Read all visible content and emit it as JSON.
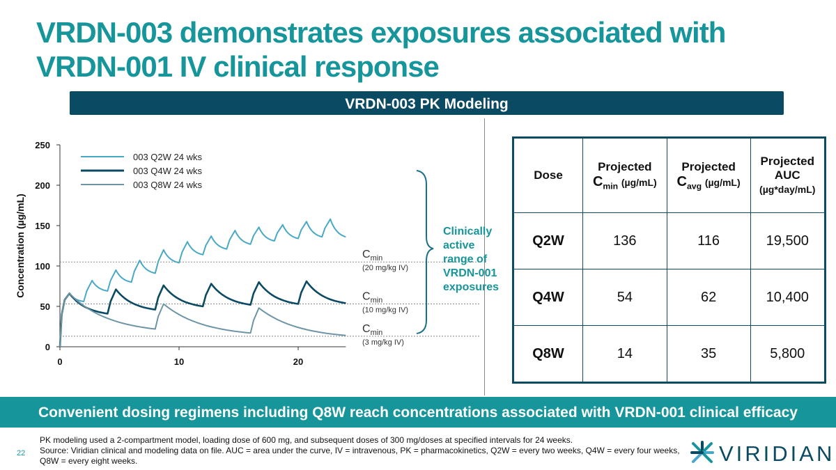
{
  "title": "VRDN-003 demonstrates exposures associated with VRDN-001 IV clinical response",
  "section_header": "VRDN-003 PK Modeling",
  "chart_data": {
    "type": "line",
    "ylabel": "Concentration (µg/mL)",
    "xlabel": "",
    "xlim": [
      0,
      24
    ],
    "ylim": [
      0,
      250
    ],
    "xticks": [
      0,
      10,
      20
    ],
    "yticks": [
      0,
      50,
      100,
      150,
      200,
      250
    ],
    "legend_position": "top-left",
    "series": [
      {
        "name": "003 Q2W 24 wks",
        "color": "#4aa8c7",
        "dose_interval_weeks": 2,
        "peaks": [
          66,
          82,
          95,
          107,
          120,
          130,
          137,
          144,
          148,
          151,
          155,
          158
        ],
        "troughs": [
          56,
          69,
          80,
          91,
          104,
          114,
          121,
          127,
          131,
          134,
          136,
          136
        ]
      },
      {
        "name": "003 Q4W 24 wks",
        "color": "#0b4a63",
        "dose_interval_weeks": 4,
        "peaks": [
          66,
          71,
          76,
          78,
          80,
          81
        ],
        "troughs": [
          41,
          46,
          50,
          52,
          53,
          54
        ]
      },
      {
        "name": "003 Q8W 24 wks",
        "color": "#6d95a6",
        "dose_interval_weeks": 8,
        "peaks": [
          66,
          53,
          48
        ],
        "troughs": [
          22,
          17,
          14
        ]
      }
    ],
    "reference_lines": [
      {
        "value": 105,
        "label_main": "C",
        "label_sub": "min",
        "label_note": "(20 mg/kg IV)"
      },
      {
        "value": 53,
        "label_main": "C",
        "label_sub": "min",
        "label_note": "(10 mg/kg IV)"
      },
      {
        "value": 13,
        "label_main": "C",
        "label_sub": "min",
        "label_note": "(3 mg/kg IV)"
      }
    ],
    "annotation": [
      "Clinically",
      "active",
      "range of",
      "VRDN-001",
      "exposures"
    ]
  },
  "table": {
    "headers": {
      "dose": "Dose",
      "cmin": {
        "line1": "Projected",
        "main": "C",
        "sub": "min",
        "unit": "(µg/mL)"
      },
      "cavg": {
        "line1": "Projected",
        "main": "C",
        "sub": "avg",
        "unit": "(µg/mL)"
      },
      "auc": {
        "line1": "Projected",
        "line2": "AUC",
        "unit": "(µg*day/mL)"
      }
    },
    "rows": [
      {
        "dose": "Q2W",
        "cmin": "136",
        "cavg": "116",
        "auc": "19,500"
      },
      {
        "dose": "Q4W",
        "cmin": "54",
        "cavg": "62",
        "auc": "10,400"
      },
      {
        "dose": "Q8W",
        "cmin": "14",
        "cavg": "35",
        "auc": "5,800"
      }
    ]
  },
  "conclusion": "Convenient dosing regimens including Q8W reach concentrations associated with VRDN-001 clinical efficacy",
  "page_number": "22",
  "footnotes": [
    "PK modeling used a 2-compartment model, loading dose of 600 mg, and subsequent doses of 300 mg/doses at specified intervals for 24 weeks.",
    "Source: Viridian clinical and modeling data on file. AUC = area under the curve, IV = intravenous, PK = pharmacokinetics, Q2W = every two weeks, Q4W = every four weeks, Q8W = every eight weeks."
  ],
  "logo_text": "VIRIDIAN",
  "colors": {
    "teal": "#16959a",
    "navy": "#0b4a63",
    "q2w": "#4aa8c7",
    "q8w": "#6d95a6"
  }
}
